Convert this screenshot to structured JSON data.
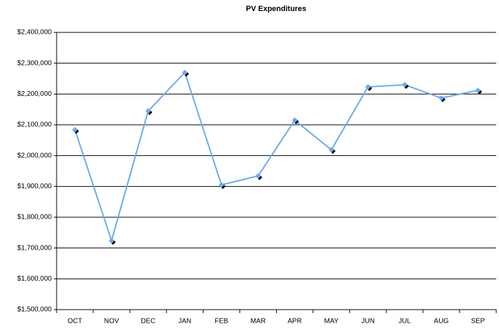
{
  "chart_data": {
    "type": "line",
    "title": "PV Expenditures",
    "categories": [
      "OCT",
      "NOV",
      "DEC",
      "JAN",
      "FEB",
      "MAR",
      "APR",
      "MAY",
      "JUN",
      "JUL",
      "AUG",
      "SEP"
    ],
    "values": [
      2084000,
      1724000,
      2145000,
      2270000,
      1905000,
      1934000,
      2115000,
      2019000,
      2223000,
      2230000,
      2187000,
      2212000
    ],
    "color": "#6aaaf0",
    "ylim": [
      1500000,
      2400000
    ],
    "yticks": [
      {
        "value": 1500000,
        "label": "$1,500,000"
      },
      {
        "value": 1600000,
        "label": "$1,600,000"
      },
      {
        "value": 1700000,
        "label": "$1,700,000"
      },
      {
        "value": 1800000,
        "label": "$1,800,000"
      },
      {
        "value": 1900000,
        "label": "$1,900,000"
      },
      {
        "value": 2000000,
        "label": "$2,000,000"
      },
      {
        "value": 2100000,
        "label": "$2,100,000"
      },
      {
        "value": 2200000,
        "label": "$2,200,000"
      },
      {
        "value": 2300000,
        "label": "$2,300,000"
      },
      {
        "value": 2400000,
        "label": "$2,400,000"
      }
    ],
    "grid": true
  }
}
